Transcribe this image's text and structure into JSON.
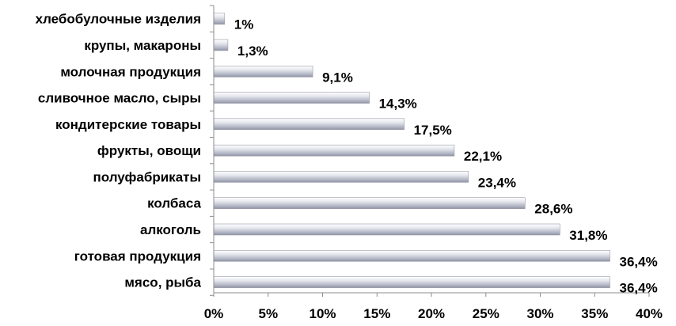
{
  "chart_data": {
    "type": "bar",
    "orientation": "horizontal",
    "title": "",
    "xlabel": "",
    "ylabel": "",
    "categories": [
      "хлебобулочные изделия",
      "крупы, макароны",
      "молочная продукция",
      "сливочное масло, сыры",
      "кондитерские товары",
      "фрукты, овощи",
      "полуфабрикаты",
      "колбаса",
      "алкоголь",
      "готовая продукция",
      "мясо, рыба"
    ],
    "values": [
      1,
      1.3,
      9.1,
      14.3,
      17.5,
      22.1,
      23.4,
      28.6,
      31.8,
      36.4,
      36.4
    ],
    "value_labels": [
      "1%",
      "1,3%",
      "9,1%",
      "14,3%",
      "17,5%",
      "22,1%",
      "23,4%",
      "28,6%",
      "31,8%",
      "36,4%",
      "36,4%"
    ],
    "xlim": [
      0,
      40
    ],
    "x_ticks": [
      0,
      5,
      10,
      15,
      20,
      25,
      30,
      35,
      40
    ],
    "x_tick_labels": [
      "0%",
      "5%",
      "10%",
      "15%",
      "20%",
      "25%",
      "30%",
      "35%",
      "40%"
    ],
    "grid": false,
    "legend": "none",
    "bar_color": "#b8bcc8"
  }
}
